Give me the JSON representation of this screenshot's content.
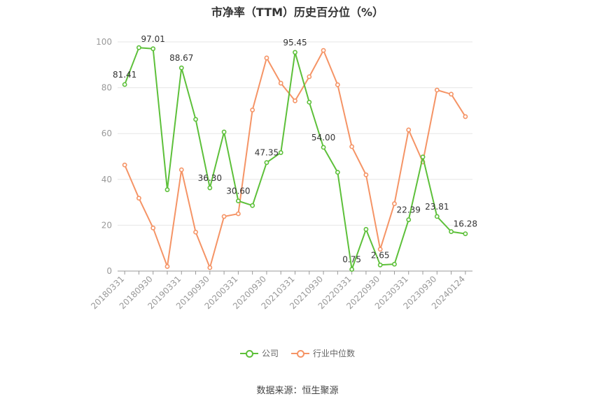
{
  "chart_data": {
    "type": "line",
    "title": "市净率（TTM）历史百分位（%）",
    "xlabel": "",
    "ylabel": "",
    "ylim": [
      0,
      100
    ],
    "yticks": [
      0,
      20,
      40,
      60,
      80,
      100
    ],
    "grid": true,
    "legend_position": "bottom",
    "x": [
      "20180331",
      "20180630",
      "20180930",
      "20181231",
      "20190331",
      "20190630",
      "20190930",
      "20191231",
      "20200331",
      "20200630",
      "20200930",
      "20201231",
      "20210331",
      "20210630",
      "20210930",
      "20211231",
      "20220331",
      "20220630",
      "20220930",
      "20221231",
      "20230331",
      "20230630",
      "20230930",
      "20231231",
      "20240124"
    ],
    "xtick_labels": [
      "20180331",
      "20180930",
      "20190331",
      "20190930",
      "20200331",
      "20200930",
      "20210331",
      "20210930",
      "20220331",
      "20220930",
      "20230331",
      "20230930",
      "20240124"
    ],
    "series": [
      {
        "name": "公司",
        "color": "#5dc03a",
        "values": [
          81.41,
          97.5,
          97.01,
          35.5,
          88.67,
          66.2,
          36.3,
          60.7,
          30.6,
          28.6,
          47.35,
          51.7,
          95.45,
          73.7,
          54.0,
          43.1,
          0.75,
          18.2,
          2.65,
          3.0,
          22.39,
          49.8,
          23.81,
          17.2,
          16.28
        ],
        "labels": [
          "81.41",
          null,
          "97.01",
          null,
          "88.67",
          null,
          "36.30",
          null,
          "30.60",
          null,
          "47.35",
          null,
          "95.45",
          null,
          "54.00",
          null,
          "0.75",
          null,
          "2.65",
          null,
          "22.39",
          null,
          "23.81",
          null,
          "16.28"
        ]
      },
      {
        "name": "行业中位数",
        "color": "#f59466",
        "values": [
          46.3,
          31.8,
          18.8,
          2.0,
          44.2,
          17.0,
          1.5,
          23.8,
          25.0,
          70.3,
          93.0,
          82.0,
          74.3,
          84.8,
          96.3,
          81.3,
          54.3,
          42.0,
          9.5,
          29.4,
          61.6,
          47.6,
          79.0,
          77.2,
          67.4
        ]
      }
    ]
  },
  "source": "数据来源：恒生聚源"
}
